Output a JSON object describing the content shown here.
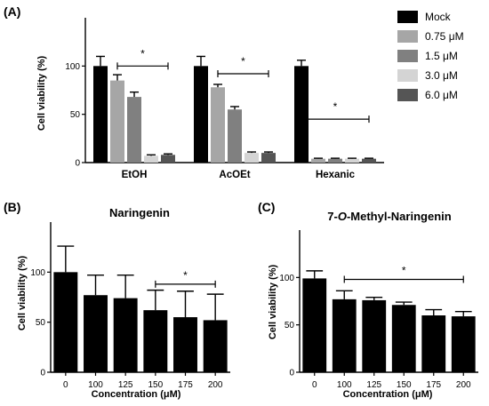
{
  "panels": {
    "A": {
      "label": "(A)"
    },
    "B": {
      "label": "(B)"
    },
    "C": {
      "label": "(C)"
    }
  },
  "chart_data": [
    {
      "id": "A",
      "type": "bar",
      "ylabel": "Cell viability (%)",
      "ylim": [
        0,
        150
      ],
      "yticks": [
        0,
        50,
        100
      ],
      "categories": [
        "EtOH",
        "AcOEt",
        "Hexanic"
      ],
      "legend_position": "right",
      "series": [
        {
          "name": "Mock",
          "color": "#000000",
          "values": [
            100,
            100,
            100
          ],
          "errors": [
            10,
            10,
            6
          ]
        },
        {
          "name": "0.75 μM",
          "color": "#a6a6a6",
          "values": [
            85,
            78,
            4
          ],
          "errors": [
            6,
            3,
            0.5
          ]
        },
        {
          "name": "1.5 μM",
          "color": "#808080",
          "values": [
            68,
            55,
            4
          ],
          "errors": [
            5,
            3,
            0.5
          ]
        },
        {
          "name": "3.0 μM",
          "color": "#d4d4d4",
          "values": [
            7,
            10,
            4
          ],
          "errors": [
            1,
            1,
            0.5
          ]
        },
        {
          "name": "6.0 μM",
          "color": "#555555",
          "values": [
            8,
            10,
            4
          ],
          "errors": [
            1,
            1,
            0.5
          ]
        }
      ],
      "significance": [
        {
          "category": 0,
          "from_series": 1,
          "to_series": 4,
          "y": 100,
          "label": "*"
        },
        {
          "category": 1,
          "from_series": 1,
          "to_series": 4,
          "y": 92,
          "label": "*"
        },
        {
          "category": 2,
          "from_series": 0,
          "to_series": 4,
          "y": 45,
          "label": "*"
        }
      ]
    },
    {
      "id": "B",
      "type": "bar",
      "title": "Naringenin",
      "xlabel": "Concentration (μM)",
      "ylabel": "Cell viability (%)",
      "ylim": [
        0,
        150
      ],
      "yticks": [
        0,
        50,
        100
      ],
      "categories": [
        "0",
        "100",
        "125",
        "150",
        "175",
        "200"
      ],
      "color": "#000000",
      "values": [
        100,
        77,
        74,
        62,
        55,
        52
      ],
      "errors": [
        26,
        20,
        23,
        20,
        26,
        26
      ],
      "significance": [
        {
          "from": 3,
          "to": 5,
          "y": 88,
          "label": "*"
        }
      ]
    },
    {
      "id": "C",
      "type": "bar",
      "title": "7-O-Methyl-Naringenin",
      "title_parts": [
        "7-",
        "O",
        "-Methyl-Naringenin"
      ],
      "xlabel": "Concentration (μM)",
      "ylabel": "Cell viability (%)",
      "ylim": [
        0,
        150
      ],
      "yticks": [
        0,
        50,
        100
      ],
      "categories": [
        "0",
        "100",
        "125",
        "150",
        "175",
        "200"
      ],
      "color": "#000000",
      "values": [
        99,
        77,
        76,
        71,
        60,
        59
      ],
      "errors": [
        8,
        9,
        3,
        3,
        6,
        5
      ],
      "significance": [
        {
          "from": 1,
          "to": 5,
          "y": 98,
          "label": "*"
        }
      ]
    }
  ]
}
